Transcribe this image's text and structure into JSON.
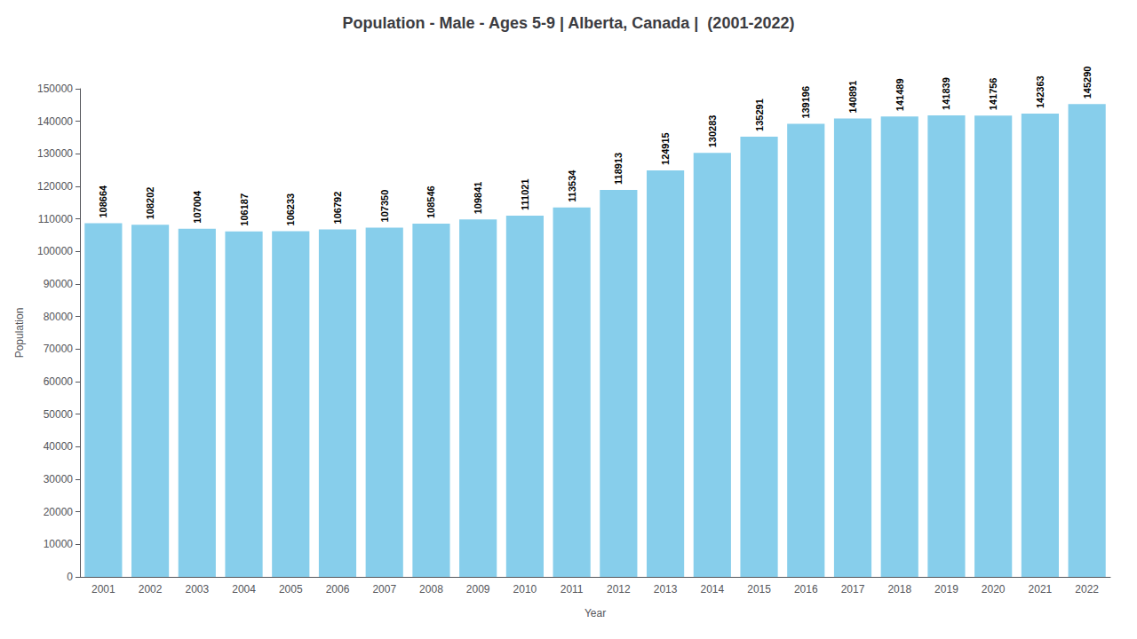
{
  "chart_data": {
    "type": "bar",
    "title": "Population - Male - Ages 5-9 | Alberta, Canada |  (2001-2022)",
    "xlabel": "Year",
    "ylabel": "Population",
    "categories": [
      "2001",
      "2002",
      "2003",
      "2004",
      "2005",
      "2006",
      "2007",
      "2008",
      "2009",
      "2010",
      "2011",
      "2012",
      "2013",
      "2014",
      "2015",
      "2016",
      "2017",
      "2018",
      "2019",
      "2020",
      "2021",
      "2022"
    ],
    "values": [
      108664,
      108202,
      107004,
      106187,
      106233,
      106792,
      107350,
      108546,
      109841,
      111021,
      113534,
      118913,
      124915,
      130283,
      135291,
      139196,
      140891,
      141489,
      141839,
      141756,
      142363,
      145290
    ],
    "color": "#87CEEB",
    "ylim": [
      0,
      150000
    ],
    "yticks": [
      0,
      10000,
      20000,
      30000,
      40000,
      50000,
      60000,
      70000,
      80000,
      90000,
      100000,
      110000,
      120000,
      130000,
      140000,
      150000
    ],
    "data_labels": true,
    "grid": false
  }
}
